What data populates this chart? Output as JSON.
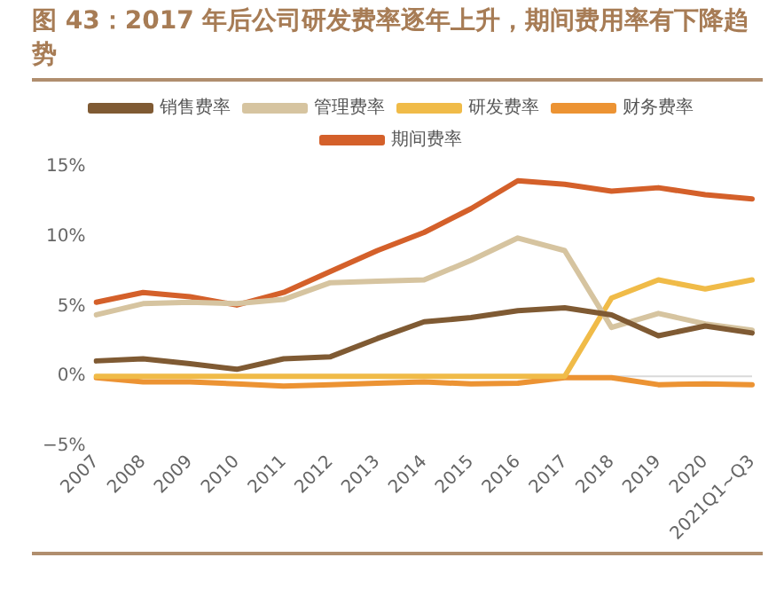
{
  "chart_data": {
    "type": "line",
    "title": "图 43：2017 年后公司研发费率逐年上升，期间费用率有下降趋势",
    "categories": [
      "2007",
      "2008",
      "2009",
      "2010",
      "2011",
      "2012",
      "2013",
      "2014",
      "2015",
      "2016",
      "2017",
      "2018",
      "2019",
      "2020",
      "2021Q1~Q3"
    ],
    "series": [
      {
        "name": "销售费率",
        "color": "#7f5a33",
        "values": [
          1.1,
          1.25,
          0.9,
          0.5,
          1.25,
          1.4,
          2.7,
          3.9,
          4.2,
          4.7,
          4.9,
          4.4,
          2.9,
          3.6,
          3.1
        ]
      },
      {
        "name": "管理费率",
        "color": "#d6c4a0",
        "values": [
          4.4,
          5.2,
          5.3,
          5.2,
          5.5,
          6.7,
          6.8,
          6.9,
          8.3,
          9.9,
          9.0,
          3.5,
          4.5,
          3.75,
          3.3
        ]
      },
      {
        "name": "研发费率",
        "color": "#f0bb48",
        "values": [
          0,
          0,
          0,
          0,
          0,
          0,
          0,
          0,
          0,
          0,
          0,
          5.6,
          6.9,
          6.25,
          6.9
        ]
      },
      {
        "name": "财务费率",
        "color": "#ec9333",
        "values": [
          -0.1,
          -0.4,
          -0.4,
          -0.55,
          -0.7,
          -0.6,
          -0.5,
          -0.4,
          -0.55,
          -0.5,
          -0.1,
          -0.1,
          -0.6,
          -0.55,
          -0.6
        ]
      },
      {
        "name": "期间费率",
        "color": "#d4602a",
        "values": [
          5.3,
          6.0,
          5.7,
          5.1,
          6.0,
          7.5,
          9.0,
          10.3,
          12.0,
          14.0,
          13.75,
          13.25,
          13.5,
          13.0,
          12.7
        ]
      }
    ],
    "ylim": [
      -5,
      15
    ],
    "yticks": [
      {
        "value": -5,
        "label": "−5%"
      },
      {
        "value": 0,
        "label": "0%"
      },
      {
        "value": 5,
        "label": "5%"
      },
      {
        "value": 10,
        "label": "10%"
      },
      {
        "value": 15,
        "label": "15%"
      }
    ],
    "ref_lines": [
      {
        "axis": "y",
        "value": 0,
        "color": "#d9d9d9"
      }
    ],
    "grid": false,
    "legend": "top",
    "marker": "none",
    "line_style": "solid"
  }
}
